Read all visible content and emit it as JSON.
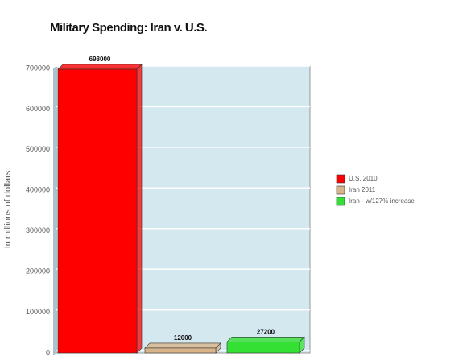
{
  "chart_data": {
    "type": "bar",
    "title": "Military Spending: Iran v. U.S.",
    "y_label": "In millions of dollars",
    "series": [
      {
        "name": "U.S. 2010",
        "color": "#ff0000",
        "values": [
          698000
        ]
      },
      {
        "name": "Iran 2011",
        "color": "#d9b48a",
        "values": [
          12000
        ]
      },
      {
        "name": "Iran - w/127% increase",
        "color": "#33e033",
        "values": [
          27200
        ]
      }
    ],
    "ylim": [
      0,
      700000
    ],
    "yticks": [
      0,
      100000,
      200000,
      300000,
      400000,
      500000,
      600000,
      700000
    ],
    "grid": true,
    "legend": "right"
  }
}
